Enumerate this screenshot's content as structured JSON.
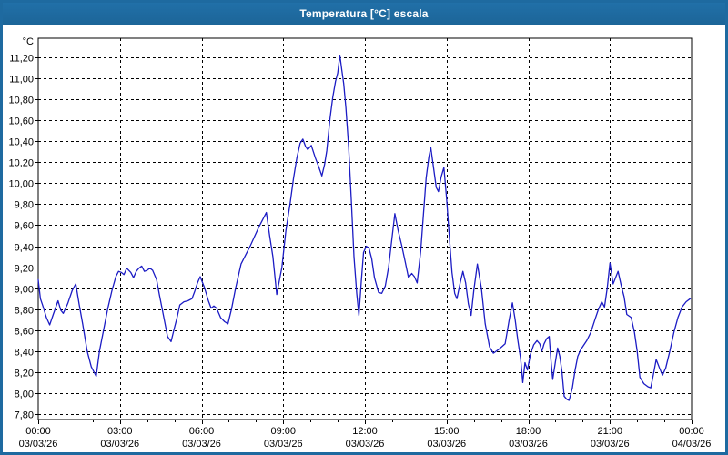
{
  "window": {
    "title": "Temperatura [°C] escala"
  },
  "colors": {
    "titlebar_blue": "#1e6aa0",
    "border_blue": "#1e6aa0",
    "line_blue": "#1c1cc4",
    "grid_black": "#000000",
    "background_white": "#ffffff",
    "label_black": "#000000"
  },
  "chart_data": {
    "type": "line",
    "title": "Temperatura [°C] escala",
    "y_unit_label": "°C",
    "ylabel": "Temperatura [°C]",
    "xlabel": "",
    "grid": true,
    "legend": "none",
    "y_tick_min": 7.8,
    "y_tick_max": 11.2,
    "y_tick_step": 0.2,
    "y_decimal_separator": ",",
    "ylim": [
      7.748,
      11.382
    ],
    "xlim_hours": [
      0,
      24
    ],
    "x_major_step_hours": 3,
    "x_minor_step_hours": 1,
    "x_ticks": [
      {
        "time": "00:00",
        "date": "03/03/26"
      },
      {
        "time": "03:00",
        "date": "03/03/26"
      },
      {
        "time": "06:00",
        "date": "03/03/26"
      },
      {
        "time": "09:00",
        "date": "03/03/26"
      },
      {
        "time": "12:00",
        "date": "03/03/26"
      },
      {
        "time": "15:00",
        "date": "03/03/26"
      },
      {
        "time": "18:00",
        "date": "03/03/26"
      },
      {
        "time": "21:00",
        "date": "03/03/26"
      },
      {
        "time": "00:00",
        "date": "04/03/26"
      }
    ],
    "series": [
      {
        "name": "Temperatura",
        "color": "#1c1cc4",
        "points": [
          [
            0.0,
            9.08
          ],
          [
            0.08,
            8.9
          ],
          [
            0.17,
            8.83
          ],
          [
            0.3,
            8.72
          ],
          [
            0.42,
            8.65
          ],
          [
            0.55,
            8.75
          ],
          [
            0.73,
            8.88
          ],
          [
            0.83,
            8.79
          ],
          [
            0.92,
            8.76
          ],
          [
            1.08,
            8.85
          ],
          [
            1.25,
            8.98
          ],
          [
            1.38,
            9.04
          ],
          [
            1.5,
            8.85
          ],
          [
            1.63,
            8.66
          ],
          [
            1.8,
            8.4
          ],
          [
            1.95,
            8.25
          ],
          [
            2.13,
            8.16
          ],
          [
            2.25,
            8.4
          ],
          [
            2.4,
            8.6
          ],
          [
            2.55,
            8.8
          ],
          [
            2.7,
            8.97
          ],
          [
            2.85,
            9.11
          ],
          [
            2.95,
            9.16
          ],
          [
            3.05,
            9.15
          ],
          [
            3.15,
            9.13
          ],
          [
            3.25,
            9.19
          ],
          [
            3.4,
            9.15
          ],
          [
            3.5,
            9.1
          ],
          [
            3.6,
            9.16
          ],
          [
            3.7,
            9.19
          ],
          [
            3.8,
            9.21
          ],
          [
            3.9,
            9.16
          ],
          [
            4.0,
            9.17
          ],
          [
            4.1,
            9.19
          ],
          [
            4.2,
            9.17
          ],
          [
            4.35,
            9.08
          ],
          [
            4.45,
            8.94
          ],
          [
            4.6,
            8.74
          ],
          [
            4.75,
            8.54
          ],
          [
            4.88,
            8.49
          ],
          [
            5.0,
            8.62
          ],
          [
            5.1,
            8.72
          ],
          [
            5.2,
            8.84
          ],
          [
            5.35,
            8.87
          ],
          [
            5.5,
            8.88
          ],
          [
            5.65,
            8.9
          ],
          [
            5.75,
            8.97
          ],
          [
            5.85,
            9.05
          ],
          [
            5.95,
            9.11
          ],
          [
            6.1,
            9.01
          ],
          [
            6.25,
            8.88
          ],
          [
            6.35,
            8.81
          ],
          [
            6.45,
            8.83
          ],
          [
            6.55,
            8.81
          ],
          [
            6.7,
            8.72
          ],
          [
            6.85,
            8.68
          ],
          [
            6.97,
            8.66
          ],
          [
            7.1,
            8.8
          ],
          [
            7.25,
            9.0
          ],
          [
            7.45,
            9.23
          ],
          [
            7.8,
            9.41
          ],
          [
            8.1,
            9.58
          ],
          [
            8.38,
            9.72
          ],
          [
            8.5,
            9.5
          ],
          [
            8.62,
            9.3
          ],
          [
            8.76,
            8.94
          ],
          [
            8.95,
            9.2
          ],
          [
            9.1,
            9.55
          ],
          [
            9.25,
            9.8
          ],
          [
            9.38,
            10.05
          ],
          [
            9.5,
            10.24
          ],
          [
            9.62,
            10.38
          ],
          [
            9.72,
            10.42
          ],
          [
            9.82,
            10.35
          ],
          [
            9.9,
            10.32
          ],
          [
            10.03,
            10.36
          ],
          [
            10.18,
            10.24
          ],
          [
            10.3,
            10.16
          ],
          [
            10.42,
            10.07
          ],
          [
            10.52,
            10.18
          ],
          [
            10.6,
            10.31
          ],
          [
            10.72,
            10.62
          ],
          [
            10.82,
            10.82
          ],
          [
            10.92,
            10.97
          ],
          [
            11.0,
            11.05
          ],
          [
            11.08,
            11.22
          ],
          [
            11.15,
            11.08
          ],
          [
            11.22,
            10.95
          ],
          [
            11.3,
            10.72
          ],
          [
            11.4,
            10.35
          ],
          [
            11.5,
            9.85
          ],
          [
            11.6,
            9.3
          ],
          [
            11.7,
            8.95
          ],
          [
            11.78,
            8.74
          ],
          [
            11.87,
            9.07
          ],
          [
            11.95,
            9.34
          ],
          [
            12.05,
            9.4
          ],
          [
            12.15,
            9.38
          ],
          [
            12.25,
            9.28
          ],
          [
            12.35,
            9.1
          ],
          [
            12.5,
            8.96
          ],
          [
            12.62,
            8.95
          ],
          [
            12.75,
            9.02
          ],
          [
            12.87,
            9.2
          ],
          [
            12.97,
            9.42
          ],
          [
            13.1,
            9.71
          ],
          [
            13.22,
            9.55
          ],
          [
            13.35,
            9.41
          ],
          [
            13.48,
            9.25
          ],
          [
            13.6,
            9.1
          ],
          [
            13.72,
            9.14
          ],
          [
            13.82,
            9.11
          ],
          [
            13.92,
            9.05
          ],
          [
            14.05,
            9.35
          ],
          [
            14.15,
            9.7
          ],
          [
            14.25,
            10.05
          ],
          [
            14.35,
            10.25
          ],
          [
            14.42,
            10.34
          ],
          [
            14.52,
            10.15
          ],
          [
            14.62,
            9.96
          ],
          [
            14.7,
            9.92
          ],
          [
            14.8,
            10.06
          ],
          [
            14.9,
            10.15
          ],
          [
            15.0,
            9.85
          ],
          [
            15.1,
            9.5
          ],
          [
            15.2,
            9.15
          ],
          [
            15.3,
            8.95
          ],
          [
            15.38,
            8.9
          ],
          [
            15.5,
            9.05
          ],
          [
            15.6,
            9.16
          ],
          [
            15.7,
            9.05
          ],
          [
            15.8,
            8.85
          ],
          [
            15.9,
            8.74
          ],
          [
            16.0,
            8.98
          ],
          [
            16.13,
            9.23
          ],
          [
            16.28,
            9.0
          ],
          [
            16.42,
            8.66
          ],
          [
            16.58,
            8.44
          ],
          [
            16.72,
            8.38
          ],
          [
            16.88,
            8.41
          ],
          [
            17.02,
            8.44
          ],
          [
            17.15,
            8.47
          ],
          [
            17.3,
            8.7
          ],
          [
            17.42,
            8.86
          ],
          [
            17.52,
            8.7
          ],
          [
            17.62,
            8.5
          ],
          [
            17.72,
            8.33
          ],
          [
            17.8,
            8.1
          ],
          [
            17.88,
            8.29
          ],
          [
            17.97,
            8.22
          ],
          [
            18.08,
            8.37
          ],
          [
            18.2,
            8.46
          ],
          [
            18.32,
            8.5
          ],
          [
            18.42,
            8.47
          ],
          [
            18.5,
            8.4
          ],
          [
            18.58,
            8.47
          ],
          [
            18.68,
            8.52
          ],
          [
            18.77,
            8.54
          ],
          [
            18.84,
            8.3
          ],
          [
            18.9,
            8.13
          ],
          [
            19.0,
            8.3
          ],
          [
            19.08,
            8.43
          ],
          [
            19.16,
            8.35
          ],
          [
            19.24,
            8.2
          ],
          [
            19.32,
            7.97
          ],
          [
            19.42,
            7.94
          ],
          [
            19.5,
            7.93
          ],
          [
            19.62,
            8.05
          ],
          [
            19.72,
            8.22
          ],
          [
            19.82,
            8.35
          ],
          [
            19.92,
            8.41
          ],
          [
            20.02,
            8.45
          ],
          [
            20.15,
            8.5
          ],
          [
            20.3,
            8.58
          ],
          [
            20.45,
            8.7
          ],
          [
            20.58,
            8.8
          ],
          [
            20.7,
            8.87
          ],
          [
            20.8,
            8.82
          ],
          [
            20.9,
            9.0
          ],
          [
            21.0,
            9.24
          ],
          [
            21.12,
            9.04
          ],
          [
            21.3,
            9.16
          ],
          [
            21.42,
            9.02
          ],
          [
            21.52,
            8.92
          ],
          [
            21.62,
            8.75
          ],
          [
            21.78,
            8.72
          ],
          [
            21.9,
            8.58
          ],
          [
            22.0,
            8.4
          ],
          [
            22.1,
            8.15
          ],
          [
            22.25,
            8.09
          ],
          [
            22.4,
            8.06
          ],
          [
            22.5,
            8.05
          ],
          [
            22.6,
            8.18
          ],
          [
            22.7,
            8.32
          ],
          [
            22.82,
            8.24
          ],
          [
            22.93,
            8.17
          ],
          [
            23.05,
            8.24
          ],
          [
            23.2,
            8.4
          ],
          [
            23.35,
            8.58
          ],
          [
            23.5,
            8.72
          ],
          [
            23.65,
            8.82
          ],
          [
            23.8,
            8.87
          ],
          [
            23.95,
            8.9
          ]
        ]
      }
    ]
  }
}
